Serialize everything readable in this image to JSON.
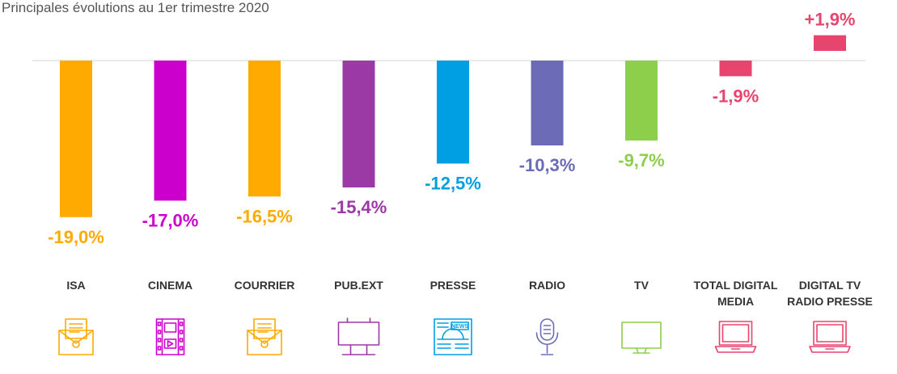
{
  "chart_data": {
    "type": "bar",
    "title": "Principales évolutions au 1er trimestre 2020",
    "categories": [
      "ISA",
      "CINEMA",
      "COURRIER",
      "PUB.EXT",
      "PRESSE",
      "RADIO",
      "TV",
      "TOTAL DIGITAL MEDIA",
      "DIGITAL TV RADIO PRESSE"
    ],
    "category_lines": [
      [
        "ISA"
      ],
      [
        "CINEMA"
      ],
      [
        "COURRIER"
      ],
      [
        "PUB.EXT"
      ],
      [
        "PRESSE"
      ],
      [
        "RADIO"
      ],
      [
        "TV"
      ],
      [
        "TOTAL DIGITAL",
        "MEDIA"
      ],
      [
        "DIGITAL TV",
        "RADIO PRESSE"
      ]
    ],
    "values": [
      -19.0,
      -17.0,
      -16.5,
      -15.4,
      -12.5,
      -10.3,
      -9.7,
      -1.9,
      1.9
    ],
    "value_labels": [
      "-19,0%",
      "-17,0%",
      "-16,5%",
      "-15,4%",
      "-12,5%",
      "-10,3%",
      "-9,7%",
      "-1,9%",
      "+1,9%"
    ],
    "colors": [
      "#FFAA00",
      "#CC00CC",
      "#FFAA00",
      "#9B3AA5",
      "#009FE3",
      "#6B6BB8",
      "#8DCF4A",
      "#E8456E",
      "#E8456E"
    ],
    "icons": [
      "envelope-icon",
      "film-strip-icon",
      "envelope-icon",
      "billboard-icon",
      "newspaper-icon",
      "microphone-icon",
      "tv-icon",
      "laptop-icon",
      "laptop-icon"
    ],
    "icon_texts": [
      "",
      "",
      "",
      "",
      "NEWS",
      "",
      "",
      "",
      ""
    ],
    "unit": "%",
    "grid": false,
    "legend": "none"
  }
}
